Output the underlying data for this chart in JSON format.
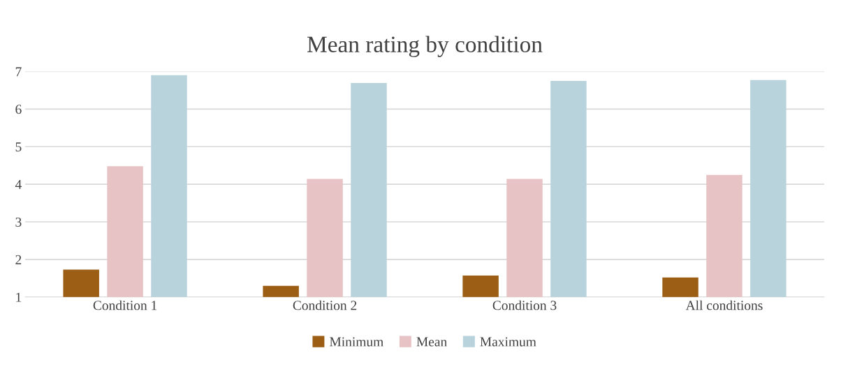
{
  "chart_data": {
    "type": "bar",
    "title": "Mean rating by condition",
    "categories": [
      "Condition 1",
      "Condition 2",
      "Condition 3",
      "All conditions"
    ],
    "series": [
      {
        "name": "Minimum",
        "color": "#9c5d14",
        "values": [
          1.73,
          1.3,
          1.57,
          1.52
        ]
      },
      {
        "name": "Mean",
        "color": "#e8c3c6",
        "values": [
          4.48,
          4.14,
          4.14,
          4.25
        ]
      },
      {
        "name": "Maximum",
        "color": "#b8d3dc",
        "values": [
          6.9,
          6.69,
          6.75,
          6.77
        ]
      }
    ],
    "ylim": [
      1,
      7
    ],
    "yticks": [
      1,
      2,
      3,
      4,
      5,
      6,
      7
    ],
    "grid": "y",
    "legend": "bottom"
  }
}
